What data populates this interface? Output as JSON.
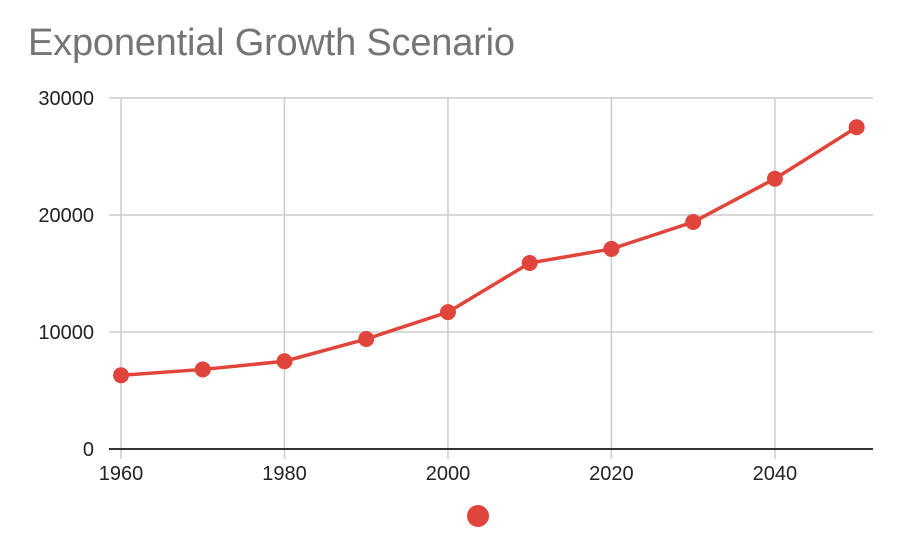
{
  "chart_data": {
    "type": "line",
    "title": "Exponential Growth Scenario",
    "xlabel": "",
    "ylabel": "",
    "x": [
      1960,
      1970,
      1980,
      1990,
      2000,
      2010,
      2020,
      2030,
      2040,
      2050
    ],
    "series": [
      {
        "values": [
          6300,
          6800,
          7500,
          9400,
          11700,
          15900,
          17100,
          19400,
          23100,
          27500
        ],
        "color": "#e0443a"
      }
    ],
    "xlim": [
      1960,
      2052
    ],
    "ylim": [
      0,
      30000
    ],
    "x_ticks": [
      "1960",
      "1980",
      "2000",
      "2020",
      "2040"
    ],
    "y_ticks": [
      "0",
      "10000",
      "20000",
      "30000"
    ],
    "grid": true,
    "legend": "bottom",
    "axis_color": "#333333",
    "grid_color": "#cccccc"
  }
}
